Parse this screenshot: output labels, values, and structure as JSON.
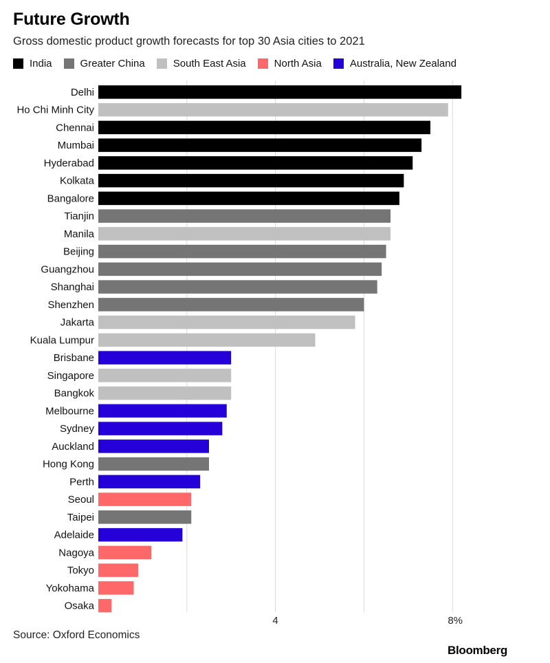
{
  "title": "Future Growth",
  "subtitle": "Gross domestic product growth forecasts for top 30 Asia cities to 2021",
  "source": "Source: Oxford Economics",
  "brand": "Bloomberg",
  "legend": [
    {
      "name": "India",
      "color": "#000000"
    },
    {
      "name": "Greater China",
      "color": "#757575"
    },
    {
      "name": "South East Asia",
      "color": "#c0c0c0"
    },
    {
      "name": "North Asia",
      "color": "#ff6868"
    },
    {
      "name": "Australia, New Zealand",
      "color": "#2500d8"
    }
  ],
  "chart_data": {
    "type": "bar",
    "orientation": "horizontal",
    "title": "Future Growth",
    "subtitle": "Gross domestic product growth forecasts for top 30 Asia cities to 2021",
    "xlim": [
      0,
      8.3
    ],
    "xticks": [
      {
        "value": 2,
        "label": ""
      },
      {
        "value": 4,
        "label": "4"
      },
      {
        "value": 6,
        "label": ""
      },
      {
        "value": 8,
        "label": "8%"
      }
    ],
    "grid": true,
    "legend_position": "top",
    "categories": [
      "Delhi",
      "Ho Chi Minh City",
      "Chennai",
      "Mumbai",
      "Hyderabad",
      "Kolkata",
      "Bangalore",
      "Tianjin",
      "Manila",
      "Beijing",
      "Guangzhou",
      "Shanghai",
      "Shenzhen",
      "Jakarta",
      "Kuala Lumpur",
      "Brisbane",
      "Singapore",
      "Bangkok",
      "Melbourne",
      "Sydney",
      "Auckland",
      "Hong Kong",
      "Perth",
      "Seoul",
      "Taipei",
      "Adelaide",
      "Nagoya",
      "Tokyo",
      "Yokohama",
      "Osaka"
    ],
    "values": [
      8.2,
      7.9,
      7.5,
      7.3,
      7.1,
      6.9,
      6.8,
      6.6,
      6.6,
      6.5,
      6.4,
      6.3,
      6.0,
      5.8,
      4.9,
      3.0,
      3.0,
      3.0,
      2.9,
      2.8,
      2.5,
      2.5,
      2.3,
      2.1,
      2.1,
      1.9,
      1.2,
      0.9,
      0.8,
      0.3
    ],
    "groups": [
      "India",
      "South East Asia",
      "India",
      "India",
      "India",
      "India",
      "India",
      "Greater China",
      "South East Asia",
      "Greater China",
      "Greater China",
      "Greater China",
      "Greater China",
      "South East Asia",
      "South East Asia",
      "Australia, New Zealand",
      "South East Asia",
      "South East Asia",
      "Australia, New Zealand",
      "Australia, New Zealand",
      "Australia, New Zealand",
      "Greater China",
      "Australia, New Zealand",
      "North Asia",
      "Greater China",
      "Australia, New Zealand",
      "North Asia",
      "North Asia",
      "North Asia",
      "North Asia"
    ]
  }
}
